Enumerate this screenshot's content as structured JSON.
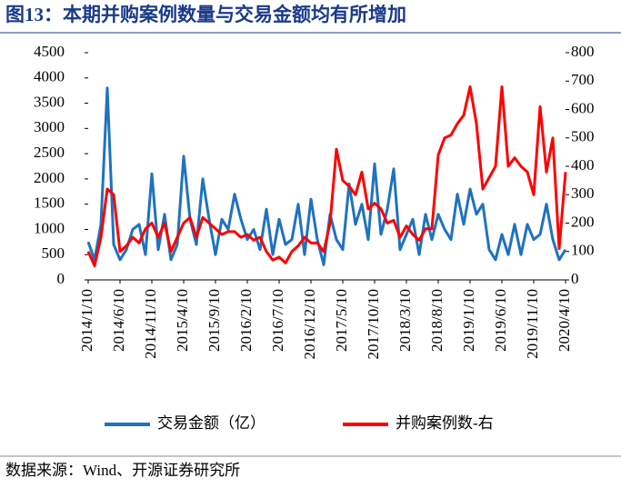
{
  "chart_data": {
    "type": "line",
    "title": "图13：本期并购案例数量与交易金额均有所增加",
    "source": "数据来源：Wind、开源证券研究所",
    "categories": [
      "2014/1/10",
      null,
      null,
      null,
      null,
      "2014/6/10",
      null,
      null,
      null,
      null,
      "2014/11/10",
      null,
      null,
      null,
      null,
      "2015/4/10",
      null,
      null,
      null,
      null,
      "2015/9/10",
      null,
      null,
      null,
      null,
      "2016/2/10",
      null,
      null,
      null,
      null,
      "2016/7/10",
      null,
      null,
      null,
      null,
      "2016/12/10",
      null,
      null,
      null,
      null,
      "2017/5/10",
      null,
      null,
      null,
      null,
      "2017/10/10",
      null,
      null,
      null,
      null,
      "2018/3/10",
      null,
      null,
      null,
      null,
      "2018/8/10",
      null,
      null,
      null,
      null,
      "2019/1/10",
      null,
      null,
      null,
      null,
      "2019/6/10",
      null,
      null,
      null,
      null,
      "2019/11/10",
      null,
      null,
      null,
      null,
      "2020/4/10"
    ],
    "series": [
      {
        "name": "交易金额（亿）",
        "color": "#1f72c0",
        "axis": "y",
        "values": [
          750,
          400,
          1100,
          3800,
          700,
          400,
          600,
          1000,
          1100,
          500,
          2100,
          600,
          1300,
          400,
          700,
          2450,
          1200,
          700,
          2000,
          1200,
          500,
          1200,
          1000,
          1700,
          1200,
          800,
          1000,
          600,
          1400,
          500,
          1200,
          700,
          800,
          1500,
          500,
          1600,
          800,
          300,
          1300,
          800,
          600,
          1900,
          1100,
          1500,
          800,
          2300,
          900,
          1400,
          2200,
          600,
          900,
          1200,
          500,
          1300,
          800,
          1300,
          1000,
          800,
          1700,
          1100,
          1800,
          1300,
          1500,
          600,
          400,
          900,
          500,
          1100,
          500,
          1100,
          800,
          900,
          1500,
          800,
          400,
          600
        ]
      },
      {
        "name": "并购案例数-右",
        "color": "#ff0000",
        "axis": "y2",
        "values": [
          100,
          50,
          150,
          320,
          300,
          100,
          120,
          150,
          130,
          180,
          200,
          150,
          200,
          100,
          150,
          200,
          220,
          150,
          220,
          200,
          180,
          160,
          170,
          170,
          150,
          160,
          140,
          150,
          100,
          70,
          80,
          60,
          100,
          120,
          150,
          130,
          130,
          100,
          200,
          460,
          350,
          330,
          300,
          380,
          250,
          270,
          250,
          200,
          210,
          150,
          190,
          160,
          140,
          180,
          180,
          440,
          500,
          510,
          550,
          580,
          680,
          550,
          320,
          360,
          400,
          680,
          400,
          430,
          400,
          380,
          300,
          610,
          380,
          500,
          110,
          380
        ]
      }
    ],
    "ylim": [
      0,
      4500
    ],
    "yticks": [
      0,
      500,
      1000,
      1500,
      2000,
      2500,
      3000,
      3500,
      4000,
      4500
    ],
    "y2lim": [
      0,
      800
    ],
    "y2ticks": [
      0,
      100,
      200,
      300,
      400,
      500,
      600,
      700,
      800
    ]
  }
}
